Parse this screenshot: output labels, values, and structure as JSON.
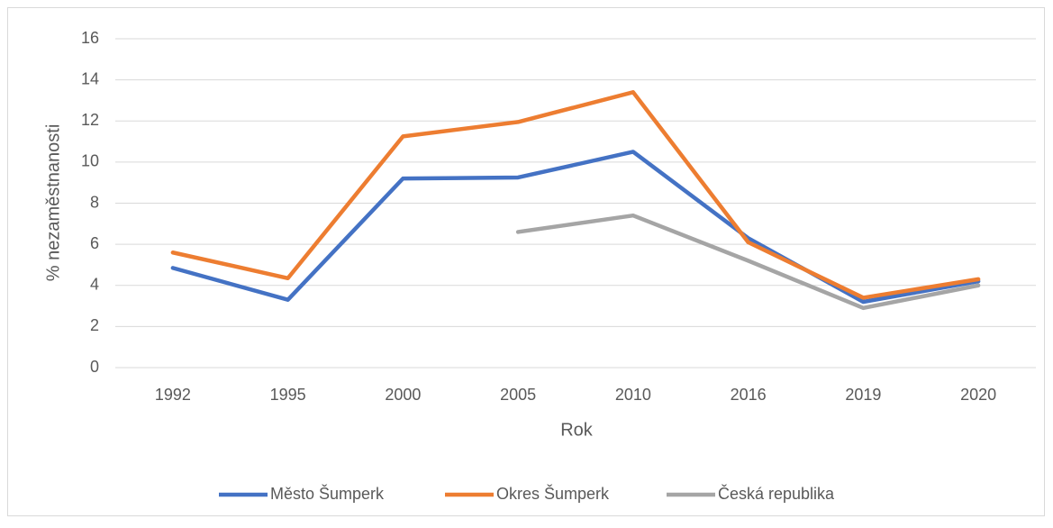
{
  "chart_data": {
    "type": "line",
    "categories": [
      "1992",
      "1995",
      "2000",
      "2005",
      "2010",
      "2016",
      "2019",
      "2020"
    ],
    "series": [
      {
        "name": "Město Šumperk",
        "color": "#4472c4",
        "values": [
          4.85,
          3.3,
          9.2,
          9.25,
          10.5,
          6.3,
          3.2,
          4.2
        ]
      },
      {
        "name": "Okres Šumperk",
        "color": "#ed7d31",
        "values": [
          5.6,
          4.35,
          11.25,
          11.95,
          13.4,
          6.1,
          3.4,
          4.3
        ]
      },
      {
        "name": "Česká republika",
        "color": "#a5a5a5",
        "values": [
          null,
          null,
          null,
          6.6,
          7.4,
          5.2,
          2.9,
          4.0
        ]
      }
    ],
    "xlabel": "Rok",
    "ylabel": "% nezaměstnanosti",
    "ylim": [
      0,
      16
    ],
    "yticks": [
      0,
      2,
      4,
      6,
      8,
      10,
      12,
      14,
      16
    ],
    "grid": true,
    "legend": "bottom"
  }
}
